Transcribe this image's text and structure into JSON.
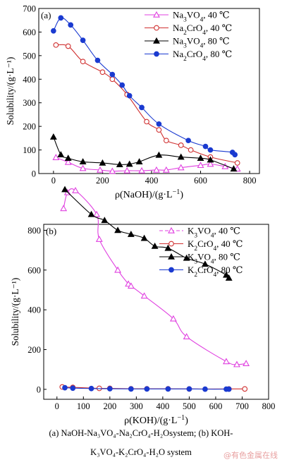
{
  "chart_data": [
    {
      "panel_label": "(a)",
      "type": "line",
      "xlabel_main": "ρ(NaOH)/(g·L",
      "xlabel_sup": "−1",
      "xlabel_end": ")",
      "ylabel": "Solubility/(g·L⁻¹)",
      "xlim": [
        -60,
        840
      ],
      "ylim": [
        0,
        700
      ],
      "xticks": [
        0,
        200,
        400,
        600,
        800
      ],
      "yticks": [
        0,
        100,
        200,
        300,
        400,
        500,
        600,
        700
      ],
      "legend_position": "top-right",
      "series": [
        {
          "name_parts": [
            [
              "Na",
              ""
            ],
            [
              "3",
              "sub"
            ],
            [
              "VO",
              ""
            ],
            [
              "4",
              "sub"
            ],
            [
              ", 40 ℃",
              ""
            ]
          ],
          "color": "#e040e0",
          "marker": "triangle-open",
          "x": [
            10,
            60,
            120,
            190,
            240,
            300,
            360,
            420,
            460,
            520,
            600,
            640,
            700,
            750
          ],
          "y": [
            68,
            48,
            22,
            15,
            10,
            12,
            12,
            15,
            15,
            25,
            35,
            40,
            30,
            20
          ]
        },
        {
          "name_parts": [
            [
              "Na",
              ""
            ],
            [
              "2",
              "sub"
            ],
            [
              "CrO",
              ""
            ],
            [
              "4",
              "sub"
            ],
            [
              ", 40 ℃",
              ""
            ]
          ],
          "color": "#d03030",
          "marker": "circle-open",
          "x": [
            10,
            60,
            120,
            200,
            240,
            300,
            380,
            430,
            460,
            520,
            560,
            640,
            750
          ],
          "y": [
            545,
            540,
            475,
            430,
            400,
            335,
            220,
            185,
            140,
            120,
            100,
            70,
            45
          ]
        },
        {
          "name_parts": [
            [
              "Na",
              ""
            ],
            [
              "3",
              "sub"
            ],
            [
              "VO",
              ""
            ],
            [
              "4",
              "sub"
            ],
            [
              ", 80 ℃",
              ""
            ]
          ],
          "color": "#000000",
          "marker": "triangle",
          "x": [
            0,
            30,
            60,
            120,
            200,
            270,
            310,
            350,
            430,
            520,
            600,
            640,
            735
          ],
          "y": [
            155,
            80,
            65,
            50,
            45,
            38,
            40,
            50,
            78,
            70,
            65,
            58,
            20
          ]
        },
        {
          "name_parts": [
            [
              "Na",
              ""
            ],
            [
              "2",
              "sub"
            ],
            [
              "CrO",
              ""
            ],
            [
              "4",
              "sub"
            ],
            [
              ", 80 ℃",
              ""
            ]
          ],
          "color": "#1a3ad0",
          "marker": "circle",
          "x": [
            0,
            30,
            70,
            120,
            180,
            240,
            280,
            310,
            360,
            430,
            550,
            620,
            640,
            730,
            740
          ],
          "y": [
            605,
            660,
            630,
            565,
            480,
            420,
            375,
            330,
            280,
            210,
            140,
            115,
            100,
            90,
            80
          ]
        }
      ]
    },
    {
      "panel_label": "(b)",
      "type": "line",
      "xlabel_main": "ρ(KOH)/(g·L",
      "xlabel_sup": "−1",
      "xlabel_end": ")",
      "ylabel": "Solubility/(g·L⁻¹)",
      "xlim": [
        -50,
        800
      ],
      "ylim": [
        -50,
        830
      ],
      "xticks": [
        0,
        100,
        200,
        300,
        400,
        500,
        600,
        700,
        800
      ],
      "yticks": [
        0,
        200,
        400,
        600,
        800
      ],
      "legend_position": "top-right",
      "series": [
        {
          "name_parts": [
            [
              "K",
              ""
            ],
            [
              "3",
              "sub"
            ],
            [
              "VO",
              ""
            ],
            [
              "4",
              "sub"
            ],
            [
              ", 40 ℃",
              ""
            ]
          ],
          "color": "#e040e0",
          "marker": "triangle-open",
          "dashed": true,
          "x": [
            25,
            40,
            70,
            150,
            160,
            230,
            270,
            280,
            330,
            440,
            490,
            640,
            680,
            715
          ],
          "y": [
            910,
            990,
            1000,
            880,
            755,
            600,
            530,
            520,
            470,
            355,
            265,
            140,
            125,
            130
          ]
        },
        {
          "name_parts": [
            [
              "K",
              ""
            ],
            [
              "2",
              "sub"
            ],
            [
              "CrO",
              ""
            ],
            [
              "4",
              "sub"
            ],
            [
              ", 40 ℃",
              ""
            ]
          ],
          "color": "#d03030",
          "marker": "circle-open",
          "x": [
            20,
            60,
            160,
            200,
            280,
            340,
            420,
            500,
            650,
            710
          ],
          "y": [
            12,
            10,
            5,
            5,
            3,
            3,
            3,
            2,
            2,
            2
          ]
        },
        {
          "name_parts": [
            [
              "K",
              ""
            ],
            [
              "3",
              "sub"
            ],
            [
              "VO",
              ""
            ],
            [
              "4",
              "sub"
            ],
            [
              ", 80 ℃",
              ""
            ]
          ],
          "color": "#000000",
          "marker": "triangle",
          "x": [
            30,
            130,
            180,
            230,
            280,
            330,
            370,
            420,
            490,
            560,
            640,
            650
          ],
          "y": [
            1005,
            880,
            850,
            800,
            780,
            760,
            720,
            710,
            660,
            630,
            575,
            560
          ]
        },
        {
          "name_parts": [
            [
              "K",
              ""
            ],
            [
              "2",
              "sub"
            ],
            [
              "CrO",
              ""
            ],
            [
              "4",
              "sub"
            ],
            [
              ", 80 ℃",
              ""
            ]
          ],
          "color": "#1a3ad0",
          "marker": "circle",
          "x": [
            30,
            60,
            130,
            200,
            280,
            340,
            420,
            500,
            560,
            640,
            650
          ],
          "y": [
            8,
            6,
            4,
            3,
            2,
            2,
            2,
            2,
            1,
            1,
            1
          ]
        }
      ]
    }
  ],
  "caption": {
    "line1": "(a) NaOH-Na₃VO₄-Na₂CrO₄-H₂Osystem; (b) KOH-",
    "line2": "K₃VO₄-K₂CrO₄-H₂O system"
  },
  "watermark": "@有色金属在线"
}
